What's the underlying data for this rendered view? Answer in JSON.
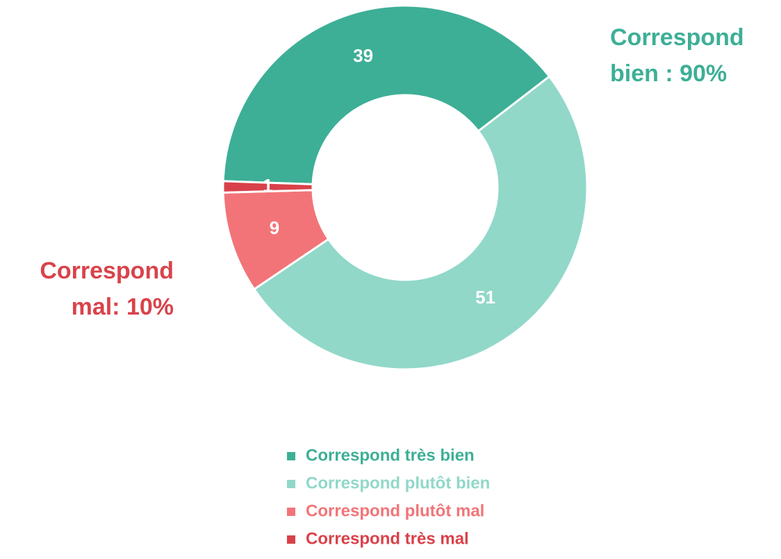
{
  "chart_data": {
    "type": "donut",
    "categories": [
      "Correspond très bien",
      "Correspond plutôt bien",
      "Correspond plutôt mal",
      "Correspond très mal"
    ],
    "values": [
      39,
      51,
      9,
      1
    ],
    "colors": [
      "#3daf96",
      "#91d8c9",
      "#f27478",
      "#d9414a"
    ],
    "annotations": [
      {
        "lines": [
          "Correspond",
          "bien : 90%"
        ],
        "color": "#3daf96"
      },
      {
        "lines": [
          "Correspond",
          "mal: 10%"
        ],
        "color": "#d9434b"
      }
    ],
    "legend": "bottom"
  }
}
